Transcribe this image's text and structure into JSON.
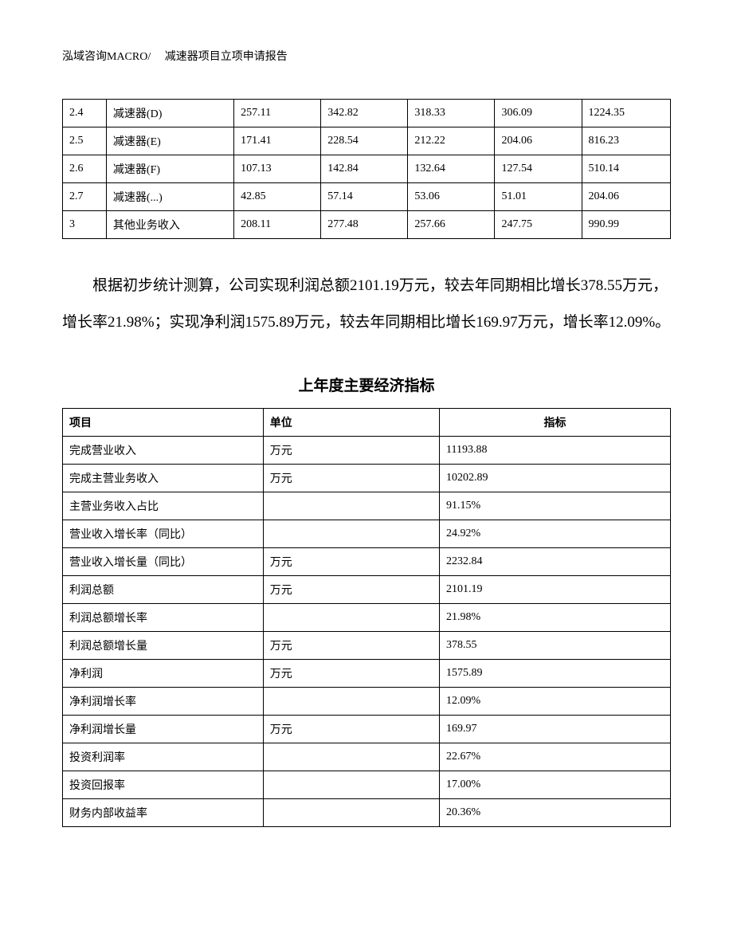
{
  "header": {
    "text": "泓域咨询MACRO/　 减速器项目立项申请报告"
  },
  "table1": {
    "rows": [
      [
        "2.4",
        "减速器(D)",
        "257.11",
        "342.82",
        "318.33",
        "306.09",
        "1224.35"
      ],
      [
        "2.5",
        "减速器(E)",
        "171.41",
        "228.54",
        "212.22",
        "204.06",
        "816.23"
      ],
      [
        "2.6",
        "减速器(F)",
        "107.13",
        "142.84",
        "132.64",
        "127.54",
        "510.14"
      ],
      [
        "2.7",
        "减速器(...)",
        "42.85",
        "57.14",
        "53.06",
        "51.01",
        "204.06"
      ],
      [
        "3",
        "其他业务收入",
        "208.11",
        "277.48",
        "257.66",
        "247.75",
        "990.99"
      ]
    ]
  },
  "paragraph": {
    "text": "根据初步统计测算，公司实现利润总额2101.19万元，较去年同期相比增长378.55万元，增长率21.98%；实现净利润1575.89万元，较去年同期相比增长169.97万元，增长率12.09%。"
  },
  "section_title": "上年度主要经济指标",
  "table2": {
    "headers": [
      "项目",
      "单位",
      "指标"
    ],
    "rows": [
      [
        "完成营业收入",
        "万元",
        "11193.88"
      ],
      [
        "完成主营业务收入",
        "万元",
        "10202.89"
      ],
      [
        "主营业务收入占比",
        "",
        "91.15%"
      ],
      [
        "营业收入增长率（同比）",
        "",
        "24.92%"
      ],
      [
        "营业收入增长量（同比）",
        "万元",
        "2232.84"
      ],
      [
        "利润总额",
        "万元",
        "2101.19"
      ],
      [
        "利润总额增长率",
        "",
        "21.98%"
      ],
      [
        "利润总额增长量",
        "万元",
        "378.55"
      ],
      [
        "净利润",
        "万元",
        "1575.89"
      ],
      [
        "净利润增长率",
        "",
        "12.09%"
      ],
      [
        "净利润增长量",
        "万元",
        "169.97"
      ],
      [
        "投资利润率",
        "",
        "22.67%"
      ],
      [
        "投资回报率",
        "",
        "17.00%"
      ],
      [
        "财务内部收益率",
        "",
        "20.36%"
      ]
    ]
  }
}
